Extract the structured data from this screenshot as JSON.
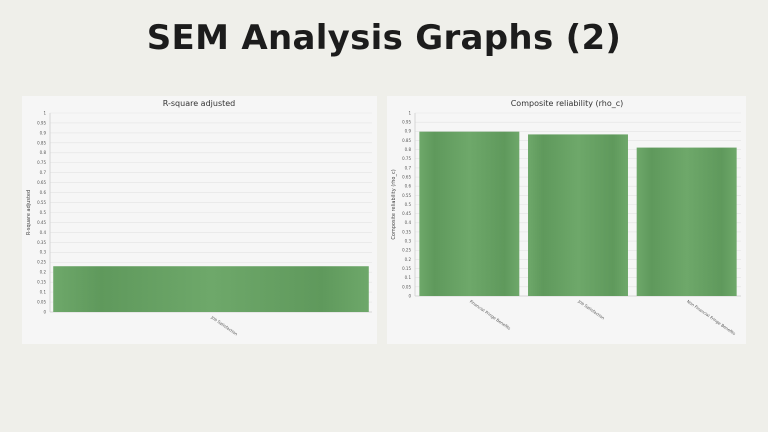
{
  "slide": {
    "title": "SEM Analysis Graphs (2)"
  },
  "colors": {
    "bar": "#5f995c",
    "bar_edge": "#6ea86a",
    "background": "#efefea",
    "panel": "#f6f6f6"
  },
  "chart_data": [
    {
      "type": "bar",
      "title": "R-square adjusted",
      "ylabel": "R-square adjusted",
      "xlabel": "",
      "ylim": [
        0,
        1
      ],
      "yticks": [
        "1",
        "0.95",
        "0.9",
        "0.85",
        "0.8",
        "0.75",
        "0.7",
        "0.65",
        "0.6",
        "0.55",
        "0.5",
        "0.45",
        "0.4",
        "0.35",
        "0.3",
        "0.25",
        "0.2",
        "0.15",
        "0.1",
        "0.05",
        "0"
      ],
      "categories": [
        "Job Satisfaction"
      ],
      "values": [
        0.23
      ],
      "grid": true,
      "legend": "none"
    },
    {
      "type": "bar",
      "title": "Composite reliability (rho_c)",
      "ylabel": "Composite reliability (rho_c)",
      "xlabel": "",
      "ylim": [
        0,
        1
      ],
      "yticks": [
        "1",
        "0.95",
        "0.9",
        "0.85",
        "0.8",
        "0.75",
        "0.7",
        "0.65",
        "0.6",
        "0.55",
        "0.5",
        "0.45",
        "0.4",
        "0.35",
        "0.3",
        "0.25",
        "0.2",
        "0.15",
        "0.1",
        "0.05",
        "0"
      ],
      "categories": [
        "Financial Fringe Benefits",
        "Job Satisfaction",
        "Non Financial Fringe Benefits"
      ],
      "values": [
        0.898,
        0.883,
        0.811
      ],
      "grid": true,
      "legend": "none"
    }
  ]
}
